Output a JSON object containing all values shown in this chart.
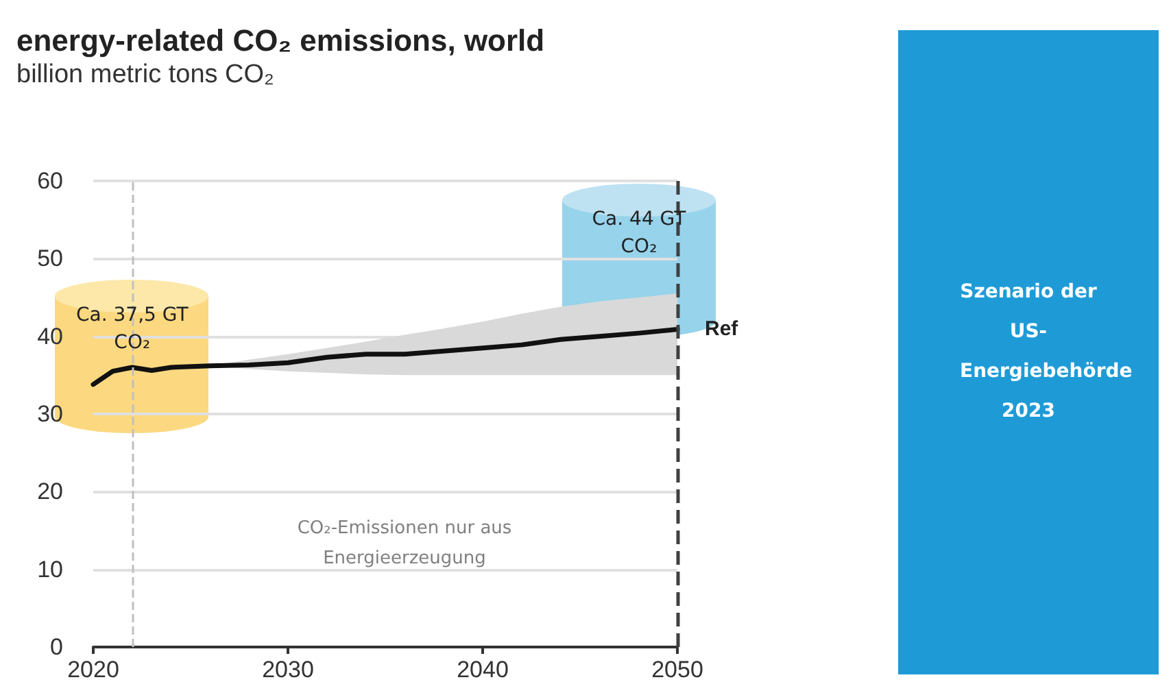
{
  "chart_data": {
    "type": "line",
    "title": "energy-related CO₂ emissions, world",
    "subtitle": "billion metric tons CO₂",
    "x": [
      2020,
      2021,
      2022,
      2023,
      2024,
      2026,
      2028,
      2030,
      2032,
      2034,
      2036,
      2038,
      2040,
      2042,
      2044,
      2046,
      2048,
      2050
    ],
    "series": [
      {
        "name": "Ref",
        "color": "#111111",
        "values": [
          33.8,
          35.5,
          36,
          35.6,
          36,
          36.2,
          36.3,
          36.6,
          37.3,
          37.7,
          37.7,
          38.1,
          38.5,
          38.9,
          39.6,
          40,
          40.4,
          40.9
        ],
        "lower": [
          null,
          null,
          null,
          null,
          null,
          36.2,
          35.8,
          35.5,
          35.3,
          35.1,
          35,
          35,
          35,
          35,
          35,
          35,
          35,
          35
        ],
        "upper": [
          null,
          null,
          null,
          null,
          null,
          36.2,
          37,
          37.7,
          38.5,
          39.3,
          40.2,
          41,
          41.9,
          42.9,
          43.8,
          44.5,
          45,
          45.5
        ]
      }
    ],
    "xlim": [
      2020,
      2050
    ],
    "xticks": [
      2020,
      2030,
      2040,
      2050
    ],
    "ylim": [
      0,
      60
    ],
    "yticks": [
      0,
      10,
      20,
      30,
      40,
      50,
      60
    ],
    "grid": "y",
    "legend": false,
    "marker": "none",
    "line_style": "solid",
    "ref_lines": [
      {
        "axis": "x",
        "value": 2022,
        "color": "#bfbfbf",
        "line_style": "dashed"
      },
      {
        "axis": "x",
        "value": 2050,
        "color": "#404040",
        "line_style": "dashed"
      }
    ],
    "annotations": [
      {
        "text": "Ca. 37,5 GT CO₂",
        "x": 2022,
        "y": 37.5
      },
      "Ca. 44 GT CO₂",
      "CO₂-Emissionen nur aus Energieerzeugung",
      "Szenario der US-Energiebehörde 2023"
    ]
  }
}
